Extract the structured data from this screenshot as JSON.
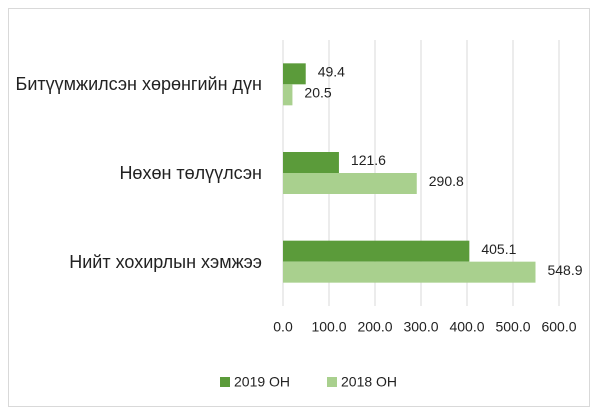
{
  "chart_data": {
    "type": "bar",
    "orientation": "horizontal",
    "categories": [
      "Битүүмжилсэн хөрөнгийн дүн",
      "Нөхөн төлүүлсэн",
      "Нийт хохирлын хэмжээ"
    ],
    "series": [
      {
        "name": "2019 ОН",
        "color": "#5b9b3a",
        "values": [
          49.4,
          121.6,
          405.1
        ]
      },
      {
        "name": "2018 ОН",
        "color": "#a9d08e",
        "values": [
          20.5,
          290.8,
          548.9
        ]
      }
    ],
    "xlim": [
      0,
      600
    ],
    "xticks": [
      {
        "value": 0,
        "label": "0.0"
      },
      {
        "value": 100,
        "label": "100.0"
      },
      {
        "value": 200,
        "label": "200.0"
      },
      {
        "value": 300,
        "label": "300.0"
      },
      {
        "value": 400,
        "label": "400.0"
      },
      {
        "value": 500,
        "label": "500.0"
      },
      {
        "value": 600,
        "label": "600.0"
      }
    ],
    "grid": true,
    "legend": "bottom"
  }
}
